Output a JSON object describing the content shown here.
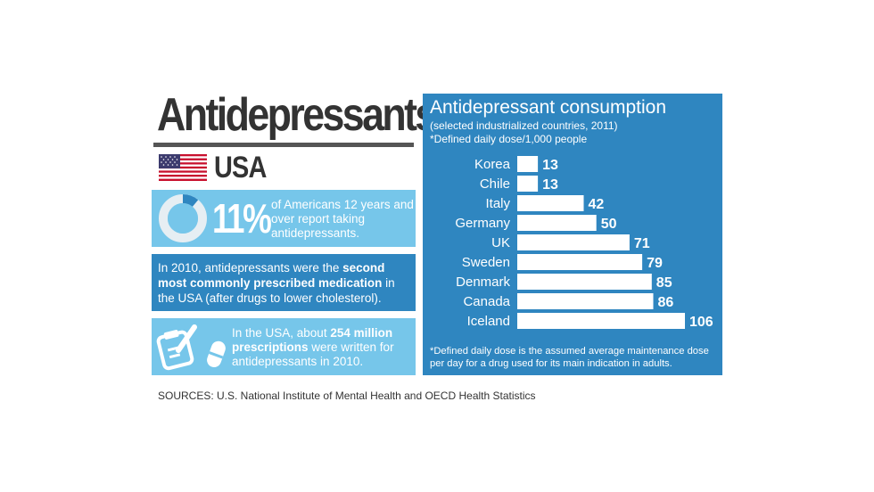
{
  "title": "Antidepressants",
  "country": "USA",
  "stat1": {
    "percent_value": 11,
    "percent_label": "11%",
    "text": "of Americans 12 years and over report taking antidepressants."
  },
  "stat2": {
    "pre": "In 2010, antidepressants were the ",
    "bold": "second most commonly prescribed medication",
    "post": " in the USA (after drugs to lower cholesterol)."
  },
  "stat3": {
    "pre": "In the USA, about ",
    "bold": "254 million prescriptions",
    "post": " were written for antidepressants in 2010."
  },
  "sources": "SOURCES: U.S. National Institute of Mental Health and OECD Health Statistics",
  "icons": [
    "clipboard-pencil-icon",
    "pill-icon",
    "us-flag-icon",
    "donut-chart-icon"
  ],
  "colors": {
    "dark_blue": "#2f86c0",
    "light_blue": "#76c6ea",
    "bar": "#ffffff",
    "text_dark": "#333333",
    "donut_track": "#e6eef3"
  },
  "chart_data": {
    "type": "bar",
    "orientation": "horizontal",
    "title": "Antidepressant consumption",
    "subtitle": "(selected industrialized countries, 2011)",
    "ylabel": "*Defined daily dose/1,000 people",
    "categories": [
      "Korea",
      "Chile",
      "Italy",
      "Germany",
      "UK",
      "Sweden",
      "Denmark",
      "Canada",
      "Iceland"
    ],
    "values": [
      13,
      13,
      42,
      50,
      71,
      79,
      85,
      86,
      106
    ],
    "xlim": [
      0,
      106
    ],
    "grid": false,
    "note": "*Defined daily dose is the assumed average maintenance dose per day for a drug used for its main indication in adults."
  }
}
